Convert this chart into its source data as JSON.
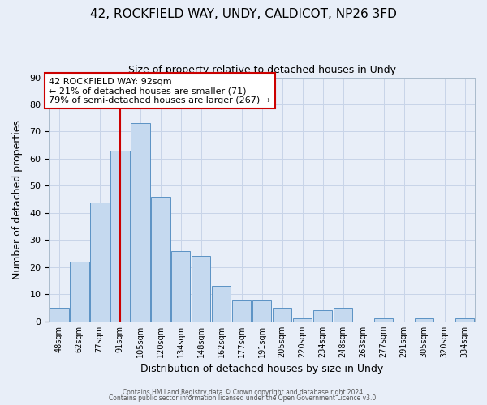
{
  "title_line1": "42, ROCKFIELD WAY, UNDY, CALDICOT, NP26 3FD",
  "title_line2": "Size of property relative to detached houses in Undy",
  "xlabel": "Distribution of detached houses by size in Undy",
  "ylabel": "Number of detached properties",
  "bin_labels": [
    "48sqm",
    "62sqm",
    "77sqm",
    "91sqm",
    "105sqm",
    "120sqm",
    "134sqm",
    "148sqm",
    "162sqm",
    "177sqm",
    "191sqm",
    "205sqm",
    "220sqm",
    "234sqm",
    "248sqm",
    "263sqm",
    "277sqm",
    "291sqm",
    "305sqm",
    "320sqm",
    "334sqm"
  ],
  "bar_heights": [
    5,
    22,
    44,
    63,
    73,
    46,
    26,
    24,
    13,
    8,
    8,
    5,
    1,
    4,
    5,
    0,
    1,
    0,
    1,
    0,
    1
  ],
  "bar_color": "#c5d9ef",
  "bar_edge_color": "#5b92c4",
  "property_line_x": 3,
  "property_line_color": "#cc0000",
  "annotation_text_line1": "42 ROCKFIELD WAY: 92sqm",
  "annotation_text_line2": "← 21% of detached houses are smaller (71)",
  "annotation_text_line3": "79% of semi-detached houses are larger (267) →",
  "annotation_box_color": "#ffffff",
  "annotation_box_edge_color": "#cc0000",
  "ylim": [
    0,
    90
  ],
  "yticks": [
    0,
    10,
    20,
    30,
    40,
    50,
    60,
    70,
    80,
    90
  ],
  "grid_color": "#c8d4e8",
  "background_color": "#e8eef8",
  "footer_line1": "Contains HM Land Registry data © Crown copyright and database right 2024.",
  "footer_line2": "Contains public sector information licensed under the Open Government Licence v3.0."
}
